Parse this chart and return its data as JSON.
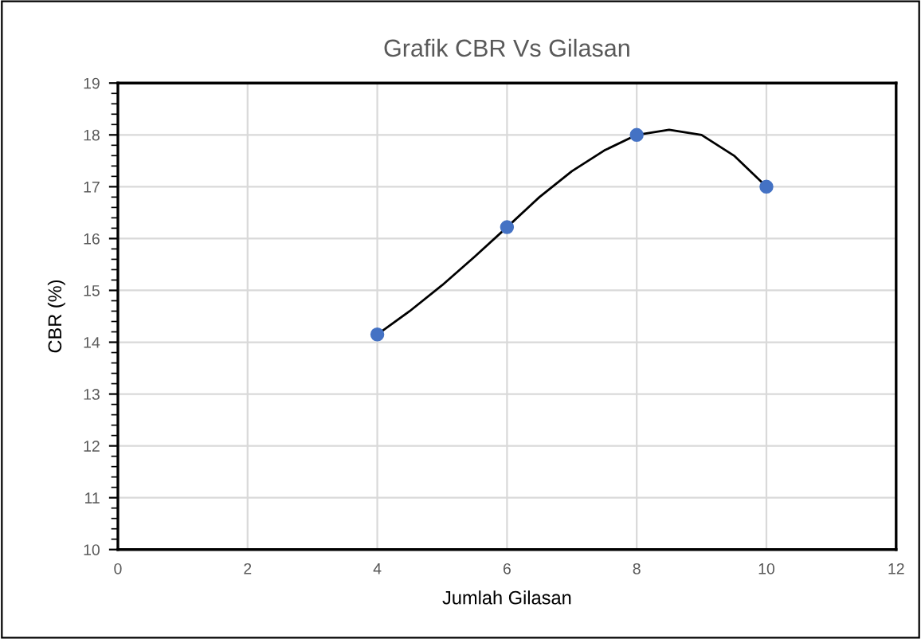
{
  "chart_data": {
    "type": "scatter",
    "title": "Grafik CBR Vs Gilasan",
    "xlabel": "Jumlah Gilasan",
    "ylabel": "CBR (%)",
    "series": [
      {
        "type": "line",
        "color": "#000000",
        "marker": "none",
        "x": [
          4,
          4.5,
          5,
          5.5,
          6,
          6.5,
          7,
          7.5,
          8,
          8.5,
          9,
          9.5,
          10
        ],
        "values": [
          14.15,
          14.6,
          15.1,
          15.65,
          16.22,
          16.8,
          17.3,
          17.7,
          18.0,
          18.1,
          18.0,
          17.6,
          17.0
        ]
      },
      {
        "color": "#4472c4",
        "marker": "circle",
        "x": [
          4,
          6,
          8,
          10
        ],
        "values": [
          14.15,
          16.22,
          18.0,
          17.0
        ]
      }
    ],
    "xlim": [
      0,
      12
    ],
    "xticks": [
      0,
      2,
      4,
      6,
      8,
      10,
      12
    ],
    "ylim": [
      10,
      19
    ],
    "yticks": [
      10,
      11,
      12,
      13,
      14,
      15,
      16,
      17,
      18,
      19
    ],
    "grid": true
  }
}
